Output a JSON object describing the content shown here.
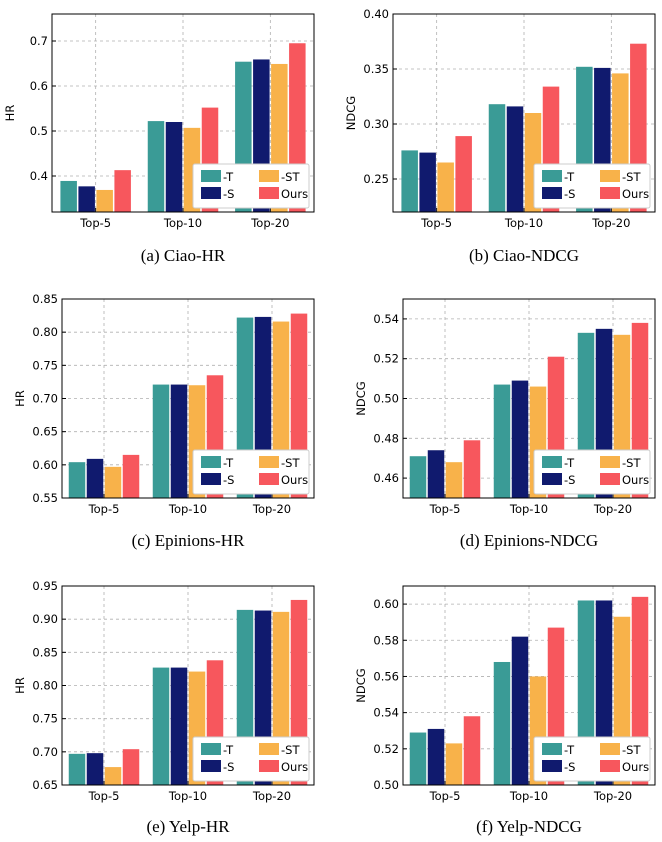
{
  "colors": {
    "-T": "#3a9b96",
    "-S": "#101a6e",
    "-ST": "#f8b24a",
    "Ours": "#f7575d"
  },
  "legend": [
    "-T",
    "-S",
    "-ST",
    "Ours"
  ],
  "chart_data": [
    {
      "type": "bar",
      "caption": "(a)  Ciao-HR",
      "ylabel": "HR",
      "categories": [
        "Top-5",
        "Top-10",
        "Top-20"
      ],
      "ylim": [
        0.32,
        0.76
      ],
      "yticks": [
        "0.4",
        "0.5",
        "0.6",
        "0.7"
      ],
      "grid": true,
      "legend_position": "lower-right",
      "series": [
        {
          "name": "-T",
          "values": [
            0.389,
            0.522,
            0.654
          ]
        },
        {
          "name": "-S",
          "values": [
            0.377,
            0.52,
            0.659
          ]
        },
        {
          "name": "-ST",
          "values": [
            0.369,
            0.507,
            0.649
          ]
        },
        {
          "name": "Ours",
          "values": [
            0.413,
            0.552,
            0.695
          ]
        }
      ]
    },
    {
      "type": "bar",
      "caption": "(b)  Ciao-NDCG",
      "ylabel": "NDCG",
      "categories": [
        "Top-5",
        "Top-10",
        "Top-20"
      ],
      "ylim": [
        0.22,
        0.4
      ],
      "yticks": [
        "0.25",
        "0.30",
        "0.35",
        "0.40"
      ],
      "grid": true,
      "legend_position": "lower-right",
      "series": [
        {
          "name": "-T",
          "values": [
            0.276,
            0.318,
            0.352
          ]
        },
        {
          "name": "-S",
          "values": [
            0.274,
            0.316,
            0.351
          ]
        },
        {
          "name": "-ST",
          "values": [
            0.265,
            0.31,
            0.346
          ]
        },
        {
          "name": "Ours",
          "values": [
            0.289,
            0.334,
            0.373
          ]
        }
      ]
    },
    {
      "type": "bar",
      "caption": "(c)  Epinions-HR",
      "ylabel": "HR",
      "categories": [
        "Top-5",
        "Top-10",
        "Top-20"
      ],
      "ylim": [
        0.55,
        0.85
      ],
      "yticks": [
        "0.55",
        "0.60",
        "0.65",
        "0.70",
        "0.75",
        "0.80",
        "0.85"
      ],
      "grid": true,
      "legend_position": "lower-right",
      "series": [
        {
          "name": "-T",
          "values": [
            0.604,
            0.721,
            0.822
          ]
        },
        {
          "name": "-S",
          "values": [
            0.609,
            0.721,
            0.823
          ]
        },
        {
          "name": "-ST",
          "values": [
            0.597,
            0.72,
            0.816
          ]
        },
        {
          "name": "Ours",
          "values": [
            0.615,
            0.735,
            0.828
          ]
        }
      ]
    },
    {
      "type": "bar",
      "caption": "(d)  Epinions-NDCG",
      "ylabel": "NDCG",
      "categories": [
        "Top-5",
        "Top-10",
        "Top-20"
      ],
      "ylim": [
        0.45,
        0.55
      ],
      "yticks": [
        "0.46",
        "0.48",
        "0.50",
        "0.52",
        "0.54"
      ],
      "grid": true,
      "legend_position": "lower-right",
      "series": [
        {
          "name": "-T",
          "values": [
            0.471,
            0.507,
            0.533
          ]
        },
        {
          "name": "-S",
          "values": [
            0.474,
            0.509,
            0.535
          ]
        },
        {
          "name": "-ST",
          "values": [
            0.468,
            0.506,
            0.532
          ]
        },
        {
          "name": "Ours",
          "values": [
            0.479,
            0.521,
            0.538
          ]
        }
      ]
    },
    {
      "type": "bar",
      "caption": "(e)  Yelp-HR",
      "ylabel": "HR",
      "categories": [
        "Top-5",
        "Top-10",
        "Top-20"
      ],
      "ylim": [
        0.65,
        0.95
      ],
      "yticks": [
        "0.65",
        "0.70",
        "0.75",
        "0.80",
        "0.85",
        "0.90",
        "0.95"
      ],
      "grid": true,
      "legend_position": "lower-right",
      "series": [
        {
          "name": "-T",
          "values": [
            0.697,
            0.827,
            0.914
          ]
        },
        {
          "name": "-S",
          "values": [
            0.698,
            0.827,
            0.913
          ]
        },
        {
          "name": "-ST",
          "values": [
            0.677,
            0.821,
            0.911
          ]
        },
        {
          "name": "Ours",
          "values": [
            0.704,
            0.838,
            0.929
          ]
        }
      ]
    },
    {
      "type": "bar",
      "caption": "(f)  Yelp-NDCG",
      "ylabel": "NDCG",
      "categories": [
        "Top-5",
        "Top-10",
        "Top-20"
      ],
      "ylim": [
        0.5,
        0.61
      ],
      "yticks": [
        "0.50",
        "0.52",
        "0.54",
        "0.56",
        "0.58",
        "0.60"
      ],
      "grid": true,
      "legend_position": "lower-right",
      "series": [
        {
          "name": "-T",
          "values": [
            0.529,
            0.568,
            0.602
          ]
        },
        {
          "name": "-S",
          "values": [
            0.531,
            0.582,
            0.602
          ]
        },
        {
          "name": "-ST",
          "values": [
            0.523,
            0.56,
            0.593
          ]
        },
        {
          "name": "Ours",
          "values": [
            0.538,
            0.587,
            0.604
          ]
        }
      ]
    }
  ]
}
